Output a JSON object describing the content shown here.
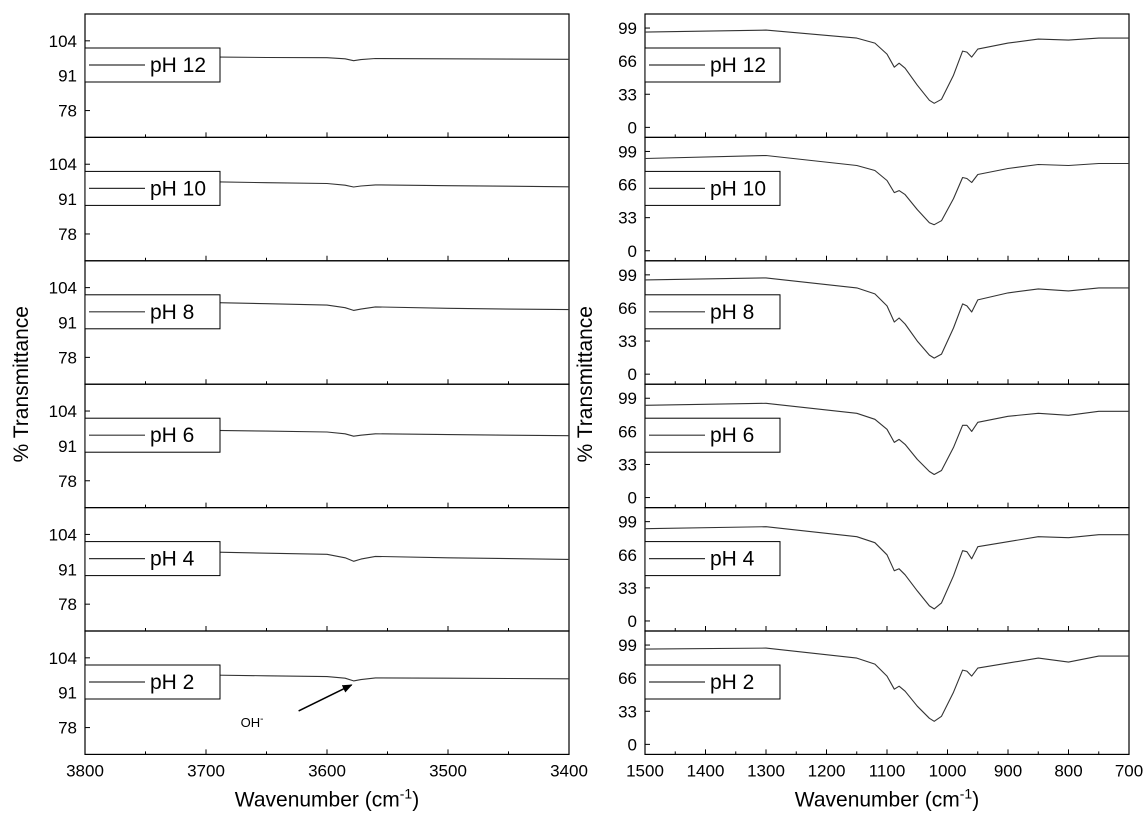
{
  "chart_data": [
    {
      "type": "line",
      "panel": "left",
      "xlabel": "Wavenumber (cm",
      "xlabel_sup": "-1",
      "xlabel_end": ")",
      "ylabel": "% Transmittance",
      "xlim": [
        3800,
        3400
      ],
      "x_ticks": [
        3800,
        3700,
        3600,
        3500,
        3400
      ],
      "ylim": [
        68,
        114
      ],
      "y_ticks": [
        104,
        91,
        78
      ],
      "annotation": {
        "text": "OH",
        "sup": "-",
        "x": 3578,
        "series": "pH 2"
      },
      "series": [
        {
          "name": "pH 12",
          "x": [
            3700,
            3650,
            3600,
            3585,
            3578,
            3572,
            3560,
            3500,
            3450,
            3400
          ],
          "y": [
            98.0,
            97.8,
            97.7,
            97.3,
            96.6,
            97.0,
            97.4,
            97.3,
            97.2,
            97.1
          ]
        },
        {
          "name": "pH 10",
          "x": [
            3700,
            3650,
            3600,
            3585,
            3578,
            3572,
            3560,
            3500,
            3450,
            3400
          ],
          "y": [
            97.5,
            97.1,
            96.8,
            96.2,
            95.5,
            95.9,
            96.3,
            96.0,
            95.8,
            95.6
          ]
        },
        {
          "name": "pH 8",
          "x": [
            3700,
            3650,
            3600,
            3585,
            3578,
            3572,
            3560,
            3500,
            3450,
            3400
          ],
          "y": [
            98.5,
            98.0,
            97.5,
            96.5,
            95.5,
            96.0,
            96.8,
            96.3,
            96.0,
            95.8
          ]
        },
        {
          "name": "pH 6",
          "x": [
            3700,
            3650,
            3600,
            3585,
            3578,
            3572,
            3560,
            3500,
            3450,
            3400
          ],
          "y": [
            96.8,
            96.5,
            96.2,
            95.5,
            94.6,
            95.0,
            95.5,
            95.2,
            95.0,
            94.8
          ]
        },
        {
          "name": "pH 4",
          "x": [
            3700,
            3650,
            3600,
            3585,
            3578,
            3572,
            3560,
            3500,
            3450,
            3400
          ],
          "y": [
            97.5,
            97.0,
            96.6,
            95.3,
            94.0,
            94.8,
            95.8,
            95.3,
            95.0,
            94.7
          ]
        },
        {
          "name": "pH 2",
          "x": [
            3700,
            3650,
            3600,
            3585,
            3578,
            3572,
            3560,
            3500,
            3450,
            3400
          ],
          "y": [
            97.6,
            97.3,
            97.0,
            96.4,
            95.4,
            95.9,
            96.5,
            96.4,
            96.3,
            96.2
          ]
        }
      ]
    },
    {
      "type": "line",
      "panel": "right",
      "xlabel": "Wavenumber (cm",
      "xlabel_sup": "-1",
      "xlabel_end": ")",
      "ylabel": "% Transmittance",
      "xlim": [
        1500,
        700
      ],
      "x_ticks": [
        1500,
        1400,
        1300,
        1200,
        1100,
        1000,
        900,
        800,
        700
      ],
      "ylim": [
        -10,
        113
      ],
      "y_ticks": [
        99,
        66,
        33,
        0
      ],
      "series": [
        {
          "name": "pH 12",
          "x": [
            1500,
            1300,
            1150,
            1120,
            1100,
            1088,
            1080,
            1070,
            1050,
            1030,
            1022,
            1010,
            990,
            975,
            968,
            960,
            950,
            900,
            850,
            800,
            750,
            700
          ],
          "y": [
            95,
            97,
            89,
            84,
            73,
            60,
            64,
            59,
            42,
            27,
            24,
            28,
            52,
            76,
            75,
            70,
            78,
            84,
            88,
            87,
            89,
            89
          ]
        },
        {
          "name": "pH 10",
          "x": [
            1500,
            1300,
            1150,
            1120,
            1100,
            1088,
            1080,
            1070,
            1050,
            1030,
            1022,
            1010,
            990,
            975,
            968,
            960,
            950,
            900,
            850,
            800,
            750,
            700
          ],
          "y": [
            92,
            95,
            85,
            80,
            70,
            58,
            60,
            56,
            41,
            28,
            26,
            30,
            52,
            73,
            72,
            68,
            76,
            82,
            86,
            85,
            87,
            87
          ]
        },
        {
          "name": "pH 8",
          "x": [
            1500,
            1300,
            1150,
            1120,
            1100,
            1088,
            1080,
            1070,
            1050,
            1030,
            1022,
            1010,
            990,
            975,
            968,
            960,
            950,
            900,
            850,
            800,
            750,
            700
          ],
          "y": [
            94,
            96,
            86,
            80,
            68,
            52,
            56,
            50,
            33,
            19,
            16,
            20,
            46,
            70,
            68,
            62,
            74,
            81,
            85,
            83,
            86,
            86
          ]
        },
        {
          "name": "pH 6",
          "x": [
            1500,
            1300,
            1150,
            1120,
            1100,
            1088,
            1080,
            1070,
            1050,
            1030,
            1022,
            1010,
            990,
            975,
            968,
            960,
            950,
            900,
            850,
            800,
            750,
            700
          ],
          "y": [
            92,
            94,
            84,
            78,
            68,
            55,
            58,
            53,
            38,
            26,
            23,
            27,
            50,
            72,
            72,
            66,
            75,
            81,
            84,
            82,
            86,
            86
          ]
        },
        {
          "name": "pH 4",
          "x": [
            1500,
            1300,
            1150,
            1120,
            1100,
            1088,
            1080,
            1070,
            1050,
            1030,
            1022,
            1010,
            990,
            975,
            968,
            960,
            950,
            900,
            850,
            800,
            750,
            700
          ],
          "y": [
            92,
            94,
            84,
            78,
            66,
            50,
            52,
            46,
            30,
            15,
            12,
            18,
            45,
            70,
            69,
            62,
            74,
            79,
            84,
            83,
            86,
            86
          ]
        },
        {
          "name": "pH 2",
          "x": [
            1500,
            1300,
            1150,
            1120,
            1100,
            1088,
            1080,
            1070,
            1050,
            1030,
            1022,
            1010,
            990,
            975,
            968,
            960,
            950,
            900,
            850,
            800,
            750,
            700
          ],
          "y": [
            95,
            96,
            86,
            80,
            68,
            55,
            58,
            53,
            38,
            26,
            23,
            28,
            52,
            74,
            73,
            68,
            76,
            81,
            86,
            82,
            88,
            88
          ]
        }
      ]
    }
  ]
}
